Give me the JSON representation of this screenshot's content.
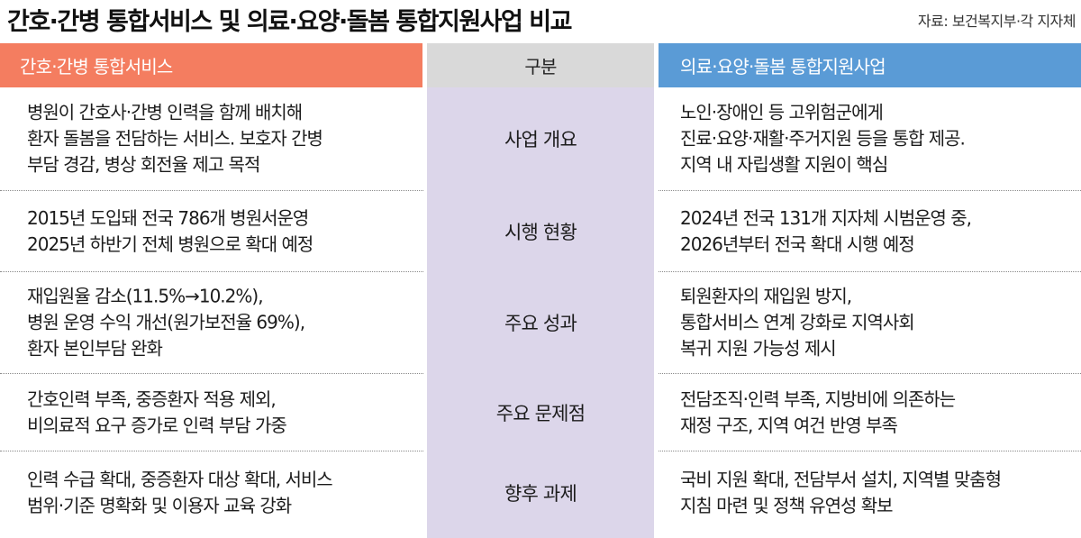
{
  "header": {
    "title": "간호·간병 통합서비스 및 의료·요양·돌봄 통합지원사업 비교",
    "source": "자료: 보건복지부·각 지자체"
  },
  "columns": {
    "left": "간호·간병 통합서비스",
    "middle": "구분",
    "right": "의료·요양·돌봄 통합지원사업"
  },
  "rows": [
    {
      "category": "사업 개요",
      "left": [
        "병원이 간호사·간병 인력을 함께 배치해",
        "환자 돌봄을 전담하는 서비스. 보호자 간병",
        "부담 경감, 병상 회전율 제고 목적"
      ],
      "right": [
        "노인·장애인 등 고위험군에게",
        "진료·요양·재활·주거지원 등을 통합 제공.",
        "지역 내 자립생활 지원이 핵심"
      ]
    },
    {
      "category": "시행 현황",
      "left": [
        "2015년 도입돼 전국 786개 병원서운영",
        "2025년 하반기 전체 병원으로 확대 예정"
      ],
      "right": [
        "2024년 전국 131개 지자체 시범운영 중,",
        "2026년부터 전국 확대 시행 예정"
      ]
    },
    {
      "category": "주요 성과",
      "left": [
        "재입원율 감소(11.5%→10.2%),",
        "병원 운영 수익 개선(원가보전율 69%),",
        "환자 본인부담 완화"
      ],
      "right": [
        "퇴원환자의 재입원 방지,",
        "통합서비스 연계 강화로 지역사회",
        "복귀 지원 가능성 제시"
      ]
    },
    {
      "category": "주요 문제점",
      "left": [
        "간호인력 부족, 중증환자 적용 제외,",
        "비의료적 요구 증가로 인력 부담 가중"
      ],
      "right": [
        "전담조직·인력 부족, 지방비에 의존하는",
        "재정 구조, 지역 여건 반영 부족"
      ]
    },
    {
      "category": "향후 과제",
      "left": [
        "인력 수급 확대, 중증환자 대상 확대, 서비스",
        "범위·기준 명확화 및 이용자 교육 강화"
      ],
      "right": [
        "국비 지원 확대, 전담부서 설치, 지역별 맞춤형",
        "지침 마련 및 정책 유연성 확보"
      ]
    }
  ],
  "colors": {
    "left_header": "#f47d60",
    "middle_header": "#d9d9d9",
    "right_header": "#5a9bd6",
    "middle_column": "#dcd6ea"
  }
}
